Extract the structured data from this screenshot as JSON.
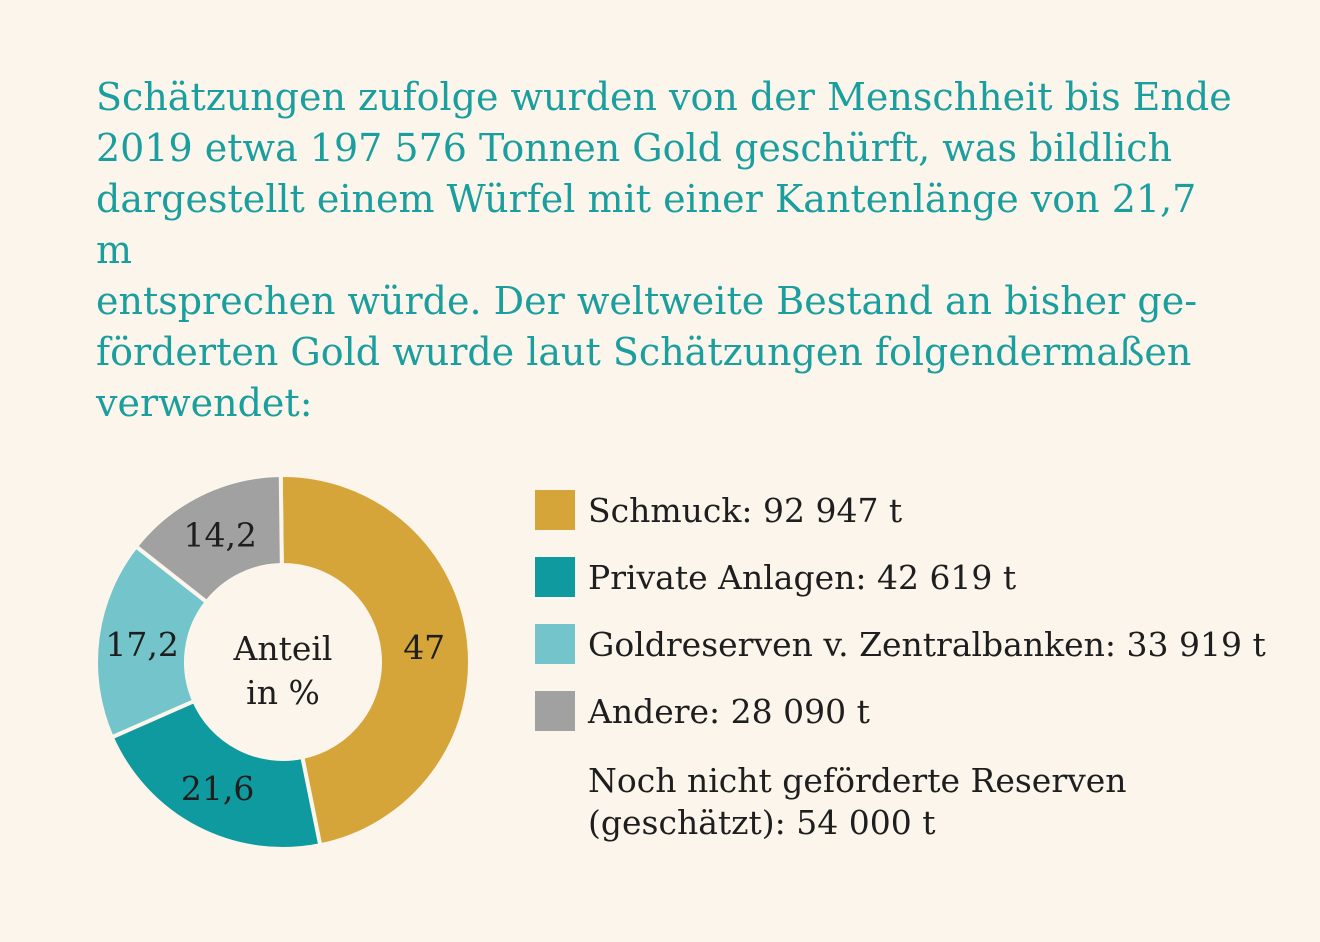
{
  "intro_text": "Schätzungen zufolge wurden von der Menschheit bis Ende\n2019 etwa 197 576 Tonnen Gold geschürft, was bildlich\ndargestellt einem Würfel mit einer Kantenlänge von 21,7 m\nentsprechen würde. Der weltweite Bestand an bisher ge-\nförderten Gold wurde laut Schätzungen folgendermaßen\nverwendet:",
  "colors": {
    "text_accent": "#1a9e9e",
    "background": "#fbf5ec"
  },
  "chart_data": {
    "type": "pie",
    "center_label_line1": "Anteil",
    "center_label_line2": "in %",
    "slices": [
      {
        "value": 47,
        "label": "47",
        "color": "#d6a53a"
      },
      {
        "value": 21.6,
        "label": "21,6",
        "color": "#0e9a9f"
      },
      {
        "value": 17.2,
        "label": "17,2",
        "color": "#74c5cb"
      },
      {
        "value": 14.2,
        "label": "14,2",
        "color": "#a1a1a1"
      }
    ],
    "legend": [
      {
        "label": "Schmuck: 92 947 t",
        "color": "#d6a53a"
      },
      {
        "label": "Private Anlagen: 42 619 t",
        "color": "#0e9a9f"
      },
      {
        "label": "Goldreserven v. Zentralbanken: 33 919 t",
        "color": "#74c5cb"
      },
      {
        "label": "Andere: 28 090 t",
        "color": "#a1a1a1"
      }
    ],
    "note": "Noch nicht geförderte Reserven\n(geschätzt): 54 000 t"
  }
}
